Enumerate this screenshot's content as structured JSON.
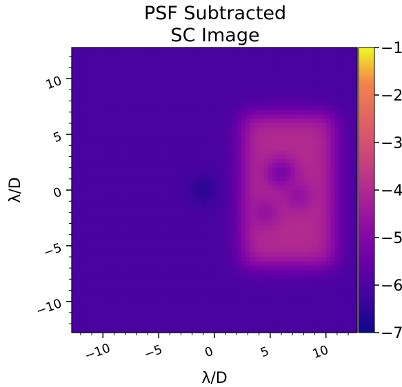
{
  "chart_data": {
    "type": "heatmap",
    "title_lines": [
      "PSF Subtracted",
      "SC Image"
    ],
    "xlabel": "λ/D",
    "ylabel": "λ/D",
    "xlim": [
      -12.8,
      12.8
    ],
    "ylim": [
      -12.8,
      12.8
    ],
    "x_ticks": [
      -10,
      -5,
      0,
      5,
      10
    ],
    "y_ticks": [
      -10,
      -5,
      0,
      5,
      10
    ],
    "x_tick_labels": [
      "−10",
      "−5",
      "0",
      "5",
      "10"
    ],
    "y_tick_labels": [
      "−10",
      "−5",
      "0",
      "5",
      "10"
    ],
    "colormap": "plasma",
    "colorbar": {
      "vmin": -7,
      "vmax": -1,
      "ticks": [
        -1,
        -2,
        -3,
        -4,
        -5,
        -6,
        -7
      ],
      "tick_labels": [
        "−1",
        "−2",
        "−3",
        "−4",
        "−5",
        "−6",
        "−7"
      ]
    },
    "background_level": -6.2,
    "dark_zone": {
      "x_range": [
        2.5,
        10.8
      ],
      "y_range": [
        -6.8,
        6.8
      ],
      "level": -4.3
    },
    "dark_spots": [
      {
        "x": -1.0,
        "y": 0.0,
        "level": -6.6
      },
      {
        "x": 6.0,
        "y": 1.5,
        "level": -5.4
      },
      {
        "x": 7.5,
        "y": -0.5,
        "level": -4.9
      },
      {
        "x": 4.5,
        "y": -2.0,
        "level": -4.9
      }
    ]
  }
}
